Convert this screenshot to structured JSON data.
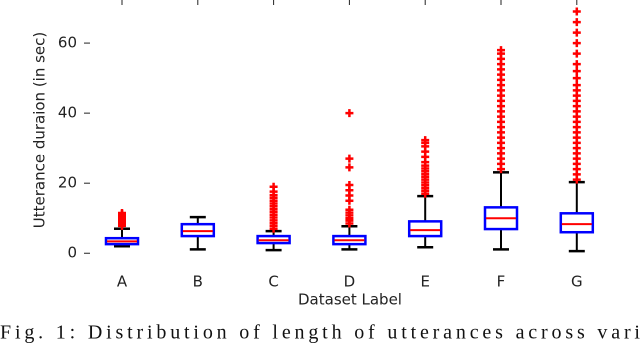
{
  "chart_data": {
    "type": "box",
    "x_label": "Dataset Label",
    "y_label": "Utterance duraion (in sec)",
    "categories": [
      "A",
      "B",
      "C",
      "D",
      "E",
      "F",
      "G"
    ],
    "boxes": [
      {
        "whislo": 2,
        "q1": 2.6,
        "med": 3.4,
        "q3": 4.3,
        "whishi": 7,
        "fliers": [
          7.8,
          8.4,
          9,
          9.5,
          10,
          10.4,
          10.8,
          11.2,
          11.5
        ]
      },
      {
        "whislo": 1.1,
        "q1": 4.9,
        "med": 6.3,
        "q3": 8.3,
        "whishi": 10.3,
        "fliers": []
      },
      {
        "whislo": 0.9,
        "q1": 2.9,
        "med": 3.7,
        "q3": 4.9,
        "whishi": 6.3,
        "fliers": [
          7,
          7.8,
          8.6,
          9.4,
          10.2,
          11,
          11.8,
          12.6,
          13.4,
          14.2,
          15,
          15.8,
          16.6,
          17.6,
          19
        ]
      },
      {
        "whislo": 1.1,
        "q1": 2.6,
        "med": 3.7,
        "q3": 4.9,
        "whishi": 7.7,
        "fliers": [
          8.5,
          9.3,
          10,
          10.8,
          11.6,
          12.4,
          15,
          16.5,
          18,
          19.5,
          24.5,
          27,
          40
        ]
      },
      {
        "whislo": 1.7,
        "q1": 4.9,
        "med": 6.6,
        "q3": 9.1,
        "whishi": 16.3,
        "fliers": [
          17,
          17.8,
          18.6,
          19.4,
          20.2,
          21,
          21.8,
          22.6,
          23.4,
          24.2,
          25,
          26,
          27.5,
          29,
          30.5,
          31.5,
          32.3
        ]
      },
      {
        "whislo": 1.1,
        "q1": 6.9,
        "med": 10,
        "q3": 13.1,
        "whishi": 23.1,
        "fliers": [
          24,
          25.5,
          27,
          28.5,
          30,
          31.5,
          33,
          34.5,
          36,
          37.5,
          39,
          40.5,
          42,
          43.5,
          45,
          46.5,
          48,
          49.5,
          51,
          52.5,
          54,
          55.5,
          57,
          58
        ]
      },
      {
        "whislo": 0.6,
        "q1": 6,
        "med": 8.3,
        "q3": 11.4,
        "whishi": 20.3,
        "fliers": [
          21,
          22.5,
          24,
          25.5,
          27,
          28.5,
          30,
          31.5,
          33,
          34.5,
          36,
          37.5,
          39,
          40.5,
          42,
          43.5,
          45,
          46.5,
          48,
          50,
          52,
          54,
          57,
          60,
          63,
          66,
          69
        ]
      }
    ],
    "box_color": "#0000ff",
    "median_color": "#ff0000",
    "whisker_color": "#000000",
    "flier_color": "#ff0000",
    "ylim": [
      -2.5,
      72.3
    ],
    "yticks": [
      0,
      20,
      40,
      60
    ]
  },
  "caption": "Fig. 1: Distribution of length of utterances across vari"
}
